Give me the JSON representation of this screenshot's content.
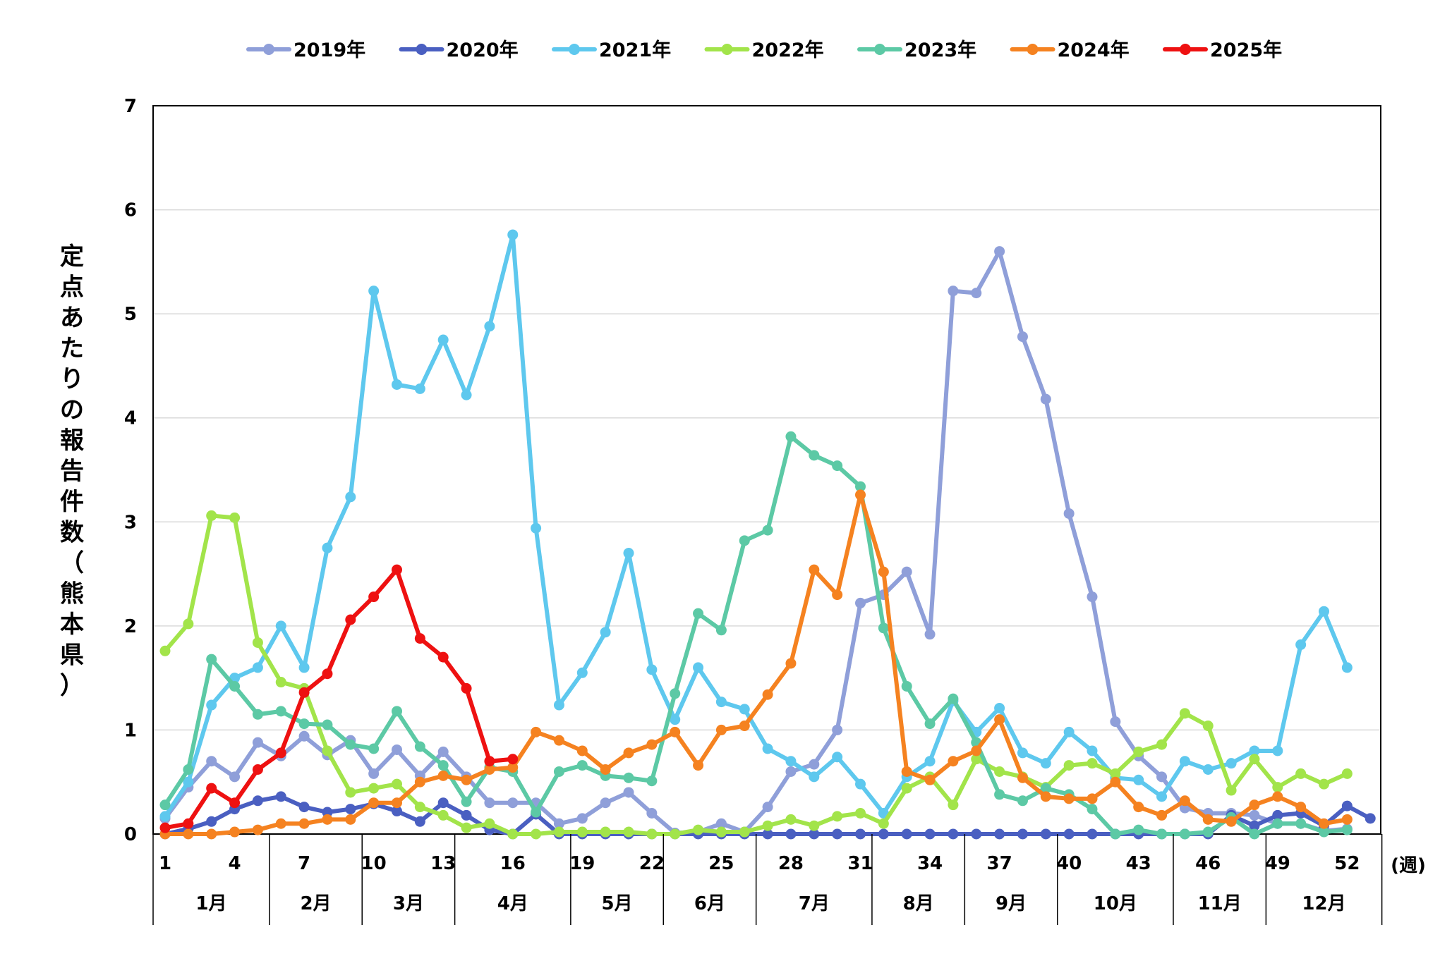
{
  "chart_data": {
    "type": "line",
    "ylabel": "定点あたりの報告件数（熊本県）",
    "xlabel": "(週)",
    "ylim": [
      0,
      7
    ],
    "yticks": [
      0,
      1,
      2,
      3,
      4,
      5,
      6,
      7
    ],
    "x": [
      1,
      2,
      3,
      4,
      5,
      6,
      7,
      8,
      9,
      10,
      11,
      12,
      13,
      14,
      15,
      16,
      17,
      18,
      19,
      20,
      21,
      22,
      23,
      24,
      25,
      26,
      27,
      28,
      29,
      30,
      31,
      32,
      33,
      34,
      35,
      36,
      37,
      38,
      39,
      40,
      41,
      42,
      43,
      44,
      45,
      46,
      47,
      48,
      49,
      50,
      51,
      52,
      53
    ],
    "xticks": [
      1,
      4,
      7,
      10,
      13,
      16,
      19,
      22,
      25,
      28,
      31,
      34,
      37,
      40,
      43,
      46,
      49,
      52
    ],
    "months": [
      {
        "label": "1月",
        "start": 1,
        "end": 5
      },
      {
        "label": "2月",
        "start": 5,
        "end": 9
      },
      {
        "label": "3月",
        "start": 9,
        "end": 13
      },
      {
        "label": "4月",
        "start": 13,
        "end": 18
      },
      {
        "label": "5月",
        "start": 18,
        "end": 22
      },
      {
        "label": "6月",
        "start": 22,
        "end": 26
      },
      {
        "label": "7月",
        "start": 26,
        "end": 31
      },
      {
        "label": "8月",
        "start": 31,
        "end": 35
      },
      {
        "label": "9月",
        "start": 35,
        "end": 39
      },
      {
        "label": "10月",
        "start": 39,
        "end": 44
      },
      {
        "label": "11月",
        "start": 44,
        "end": 48
      },
      {
        "label": "12月",
        "start": 48,
        "end": 53
      }
    ],
    "legend_position": "top",
    "grid": true,
    "series": [
      {
        "name": "2019年",
        "color": "#8f9fd9",
        "values": [
          0.15,
          0.45,
          0.7,
          0.55,
          0.88,
          0.75,
          0.94,
          0.76,
          0.9,
          0.58,
          0.81,
          0.56,
          0.79,
          0.55,
          0.3,
          0.3,
          0.3,
          0.1,
          0.15,
          0.3,
          0.4,
          0.2,
          0.01,
          0.02,
          0.1,
          0.02,
          0.26,
          0.6,
          0.67,
          1.0,
          2.22,
          2.3,
          2.52,
          1.92,
          5.22,
          5.2,
          5.6,
          4.78,
          4.18,
          3.08,
          2.28,
          1.08,
          0.75,
          0.55,
          0.25,
          0.2,
          0.2,
          0.18,
          0.1,
          0.1,
          0.03,
          0.05,
          null
        ]
      },
      {
        "name": "2020年",
        "color": "#4a5fc1",
        "values": [
          0.0,
          0.05,
          0.12,
          0.24,
          0.32,
          0.36,
          0.26,
          0.21,
          0.24,
          0.29,
          0.22,
          0.12,
          0.3,
          0.18,
          0.04,
          0.0,
          0.19,
          0.0,
          0.0,
          0.0,
          0.0,
          0.0,
          0.0,
          0.0,
          0.0,
          0.0,
          0.0,
          0.0,
          0.0,
          0.0,
          0.0,
          0.0,
          0.0,
          0.0,
          0.0,
          0.0,
          0.0,
          0.0,
          0.0,
          0.0,
          0.0,
          0.0,
          0.0,
          0.0,
          0.0,
          0.0,
          0.18,
          0.08,
          0.18,
          0.2,
          0.08,
          0.27,
          0.15
        ]
      },
      {
        "name": "2021年",
        "color": "#5ec8ee",
        "values": [
          0.17,
          0.5,
          1.24,
          1.5,
          1.6,
          2.0,
          1.6,
          2.75,
          3.24,
          5.22,
          4.32,
          4.28,
          4.75,
          4.22,
          4.88,
          5.76,
          2.94,
          1.24,
          1.55,
          1.94,
          2.7,
          1.58,
          1.1,
          1.6,
          1.27,
          1.2,
          0.82,
          0.7,
          0.55,
          0.74,
          0.48,
          0.2,
          0.55,
          0.7,
          1.28,
          0.98,
          1.21,
          0.78,
          0.68,
          0.98,
          0.8,
          0.54,
          0.52,
          0.36,
          0.7,
          0.62,
          0.68,
          0.8,
          0.8,
          1.82,
          2.14,
          1.6,
          null
        ]
      },
      {
        "name": "2022年",
        "color": "#a2e44a",
        "values": [
          1.76,
          2.02,
          3.06,
          3.04,
          1.84,
          1.46,
          1.4,
          0.8,
          0.4,
          0.44,
          0.48,
          0.26,
          0.18,
          0.06,
          0.1,
          0.0,
          0.0,
          0.02,
          0.02,
          0.02,
          0.02,
          0.0,
          0.0,
          0.04,
          0.02,
          0.02,
          0.08,
          0.14,
          0.08,
          0.17,
          0.2,
          0.1,
          0.44,
          0.55,
          0.28,
          0.72,
          0.6,
          0.55,
          0.45,
          0.66,
          0.68,
          0.58,
          0.79,
          0.86,
          1.16,
          1.04,
          0.42,
          0.72,
          0.45,
          0.58,
          0.48,
          0.58,
          null
        ]
      },
      {
        "name": "2023年",
        "color": "#5cc9a5",
        "values": [
          0.28,
          0.62,
          1.68,
          1.42,
          1.15,
          1.18,
          1.06,
          1.05,
          0.86,
          0.82,
          1.18,
          0.84,
          0.66,
          0.31,
          0.64,
          0.6,
          0.21,
          0.6,
          0.66,
          0.56,
          0.54,
          0.51,
          1.35,
          2.12,
          1.96,
          2.82,
          2.92,
          3.82,
          3.64,
          3.54,
          3.34,
          1.98,
          1.42,
          1.06,
          1.3,
          0.88,
          0.38,
          0.32,
          0.44,
          0.38,
          0.24,
          0.0,
          0.04,
          0.0,
          0.0,
          0.02,
          0.16,
          0.0,
          0.1,
          0.1,
          0.02,
          0.04,
          null
        ]
      },
      {
        "name": "2024年",
        "color": "#f58220",
        "values": [
          0.0,
          0.0,
          0.0,
          0.02,
          0.04,
          0.1,
          0.1,
          0.14,
          0.14,
          0.3,
          0.3,
          0.5,
          0.56,
          0.52,
          0.62,
          0.64,
          0.98,
          0.9,
          0.8,
          0.62,
          0.78,
          0.86,
          0.98,
          0.66,
          1.0,
          1.04,
          1.34,
          1.64,
          2.54,
          2.3,
          3.26,
          2.52,
          0.6,
          0.52,
          0.7,
          0.8,
          1.1,
          0.54,
          0.36,
          0.34,
          0.34,
          0.5,
          0.26,
          0.18,
          0.32,
          0.14,
          0.12,
          0.28,
          0.36,
          0.26,
          0.1,
          0.14,
          null
        ]
      },
      {
        "name": "2025年",
        "color": "#ee1111",
        "values": [
          0.06,
          0.1,
          0.44,
          0.3,
          0.62,
          0.78,
          1.36,
          1.54,
          2.06,
          2.28,
          2.54,
          1.88,
          1.7,
          1.4,
          0.7,
          0.72,
          null,
          null,
          null,
          null,
          null,
          null,
          null,
          null,
          null,
          null,
          null,
          null,
          null,
          null,
          null,
          null,
          null,
          null,
          null,
          null,
          null,
          null,
          null,
          null,
          null,
          null,
          null,
          null,
          null,
          null,
          null,
          null,
          null,
          null,
          null,
          null,
          null
        ]
      }
    ]
  }
}
